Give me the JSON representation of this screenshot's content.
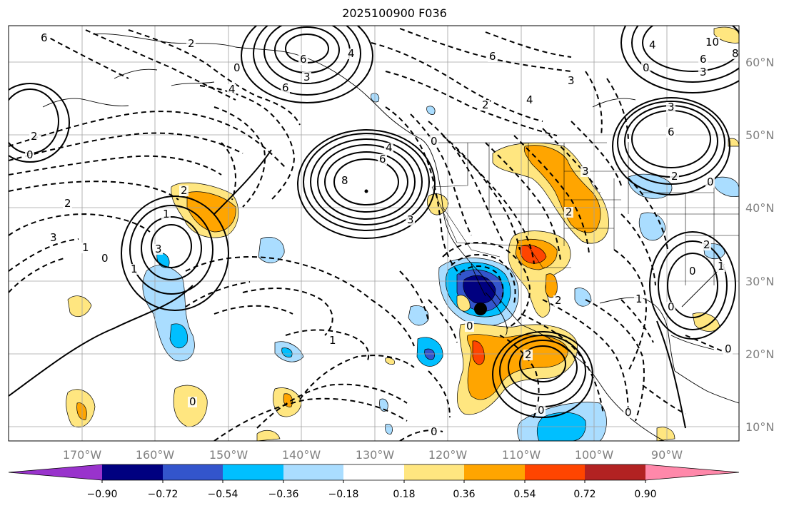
{
  "title": "2025100900 F036",
  "map": {
    "lat_labels": [
      "60°N",
      "50°N",
      "40°N",
      "30°N",
      "20°N",
      "10°N"
    ],
    "lon_labels": [
      "170°W",
      "160°W",
      "150°W",
      "140°W",
      "130°W",
      "120°W",
      "110°W",
      "100°W",
      "90°W"
    ],
    "contour_labels": [
      "6",
      "2",
      "0",
      "4",
      "6",
      "6",
      "3",
      "4",
      "6",
      "2",
      "4",
      "10",
      "6",
      "8",
      "3",
      "3",
      "0",
      "4",
      "3",
      "3",
      "6",
      "0",
      "2",
      "8",
      "6",
      "4",
      "3",
      "0",
      "2",
      "2",
      "1",
      "3",
      "1",
      "0",
      "0",
      "2",
      "3",
      "2",
      "0",
      "2",
      "1",
      "0",
      "2",
      "0",
      "1",
      "0",
      "0",
      "0",
      "0",
      "1",
      "2",
      "0",
      "1"
    ]
  },
  "colorbar": {
    "tick_labels": [
      "−0.90",
      "−0.72",
      "−0.54",
      "−0.36",
      "−0.18",
      "0.18",
      "0.36",
      "0.54",
      "0.72",
      "0.90"
    ],
    "colors": [
      "#9933cc",
      "#000080",
      "#3355cc",
      "#00bfff",
      "#aaddff",
      "#ffffff",
      "#ffe680",
      "#ffa500",
      "#ff4500",
      "#b22222",
      "#ff88aa"
    ]
  }
}
